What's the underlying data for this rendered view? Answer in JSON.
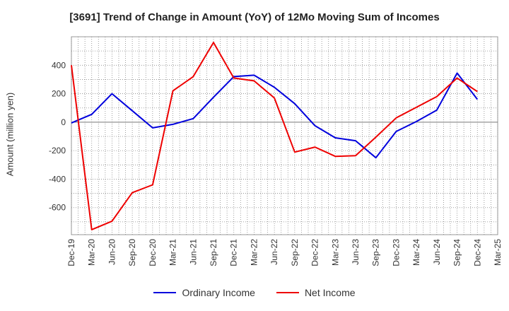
{
  "chart_data": {
    "type": "line",
    "title": "[3691]  Trend of Change in Amount (YoY) of 12Mo Moving Sum of Incomes",
    "xlabel": "",
    "ylabel": "Amount (million yen)",
    "categories": [
      "Dec-19",
      "Mar-20",
      "Jun-20",
      "Sep-20",
      "Dec-20",
      "Mar-21",
      "Jun-21",
      "Sep-21",
      "Dec-21",
      "Mar-22",
      "Jun-22",
      "Sep-22",
      "Dec-22",
      "Mar-23",
      "Jun-23",
      "Sep-23",
      "Dec-23",
      "Mar-24",
      "Jun-24",
      "Sep-24",
      "Dec-24",
      "Mar-25"
    ],
    "ylim": [
      -790,
      600
    ],
    "yticks": [
      400,
      200,
      0,
      -200,
      -400,
      -600
    ],
    "grid": true,
    "legend_position": "bottom",
    "series": [
      {
        "name": "Ordinary Income",
        "color": "#0000dd",
        "values": [
          -5,
          55,
          200,
          80,
          -40,
          -15,
          25,
          175,
          320,
          330,
          245,
          130,
          -25,
          -110,
          -130,
          -250,
          -65,
          5,
          85,
          345,
          160,
          null
        ]
      },
      {
        "name": "Net Income",
        "color": "#ee0000",
        "values": [
          400,
          -755,
          -695,
          -495,
          -440,
          220,
          320,
          560,
          310,
          290,
          170,
          -210,
          -175,
          -240,
          -235,
          -105,
          30,
          105,
          180,
          310,
          215,
          null
        ]
      }
    ]
  }
}
